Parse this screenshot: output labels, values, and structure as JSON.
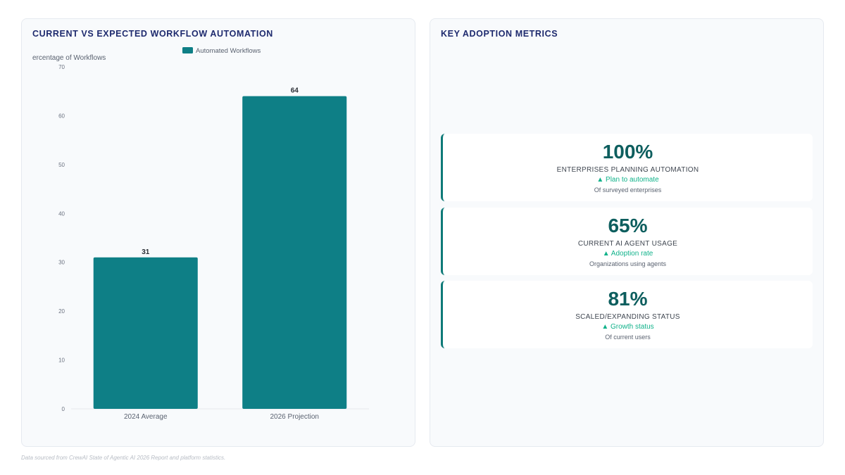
{
  "chart_panel": {
    "title": "CURRENT VS EXPECTED WORKFLOW AUTOMATION"
  },
  "chart_data": {
    "type": "bar",
    "categories": [
      "2024 Average",
      "2026 Projection"
    ],
    "series": [
      {
        "name": "Automated Workflows",
        "values": [
          31,
          64
        ]
      }
    ],
    "ylabel": "ercentage of Workflows",
    "ylim": [
      0,
      70
    ],
    "yticks": [
      0,
      10,
      20,
      30,
      40,
      50,
      60,
      70
    ],
    "legend_position": "top",
    "data_labels": true,
    "grid": false,
    "colors": {
      "bar": "#0e7f86"
    }
  },
  "metrics_panel": {
    "title": "KEY ADOPTION METRICS",
    "cards": [
      {
        "value": "100%",
        "label": "ENTERPRISES PLANNING AUTOMATION",
        "trend": "▲ Plan to automate",
        "sub": "Of surveyed enterprises"
      },
      {
        "value": "65%",
        "label": "CURRENT AI AGENT USAGE",
        "trend": "▲ Adoption rate",
        "sub": "Organizations using agents"
      },
      {
        "value": "81%",
        "label": "SCALED/EXPANDING STATUS",
        "trend": "▲ Growth status",
        "sub": "Of current users"
      }
    ]
  },
  "footer": {
    "note": "Data sourced from CrewAI State of Agentic AI 2026 Report and platform statistics."
  }
}
